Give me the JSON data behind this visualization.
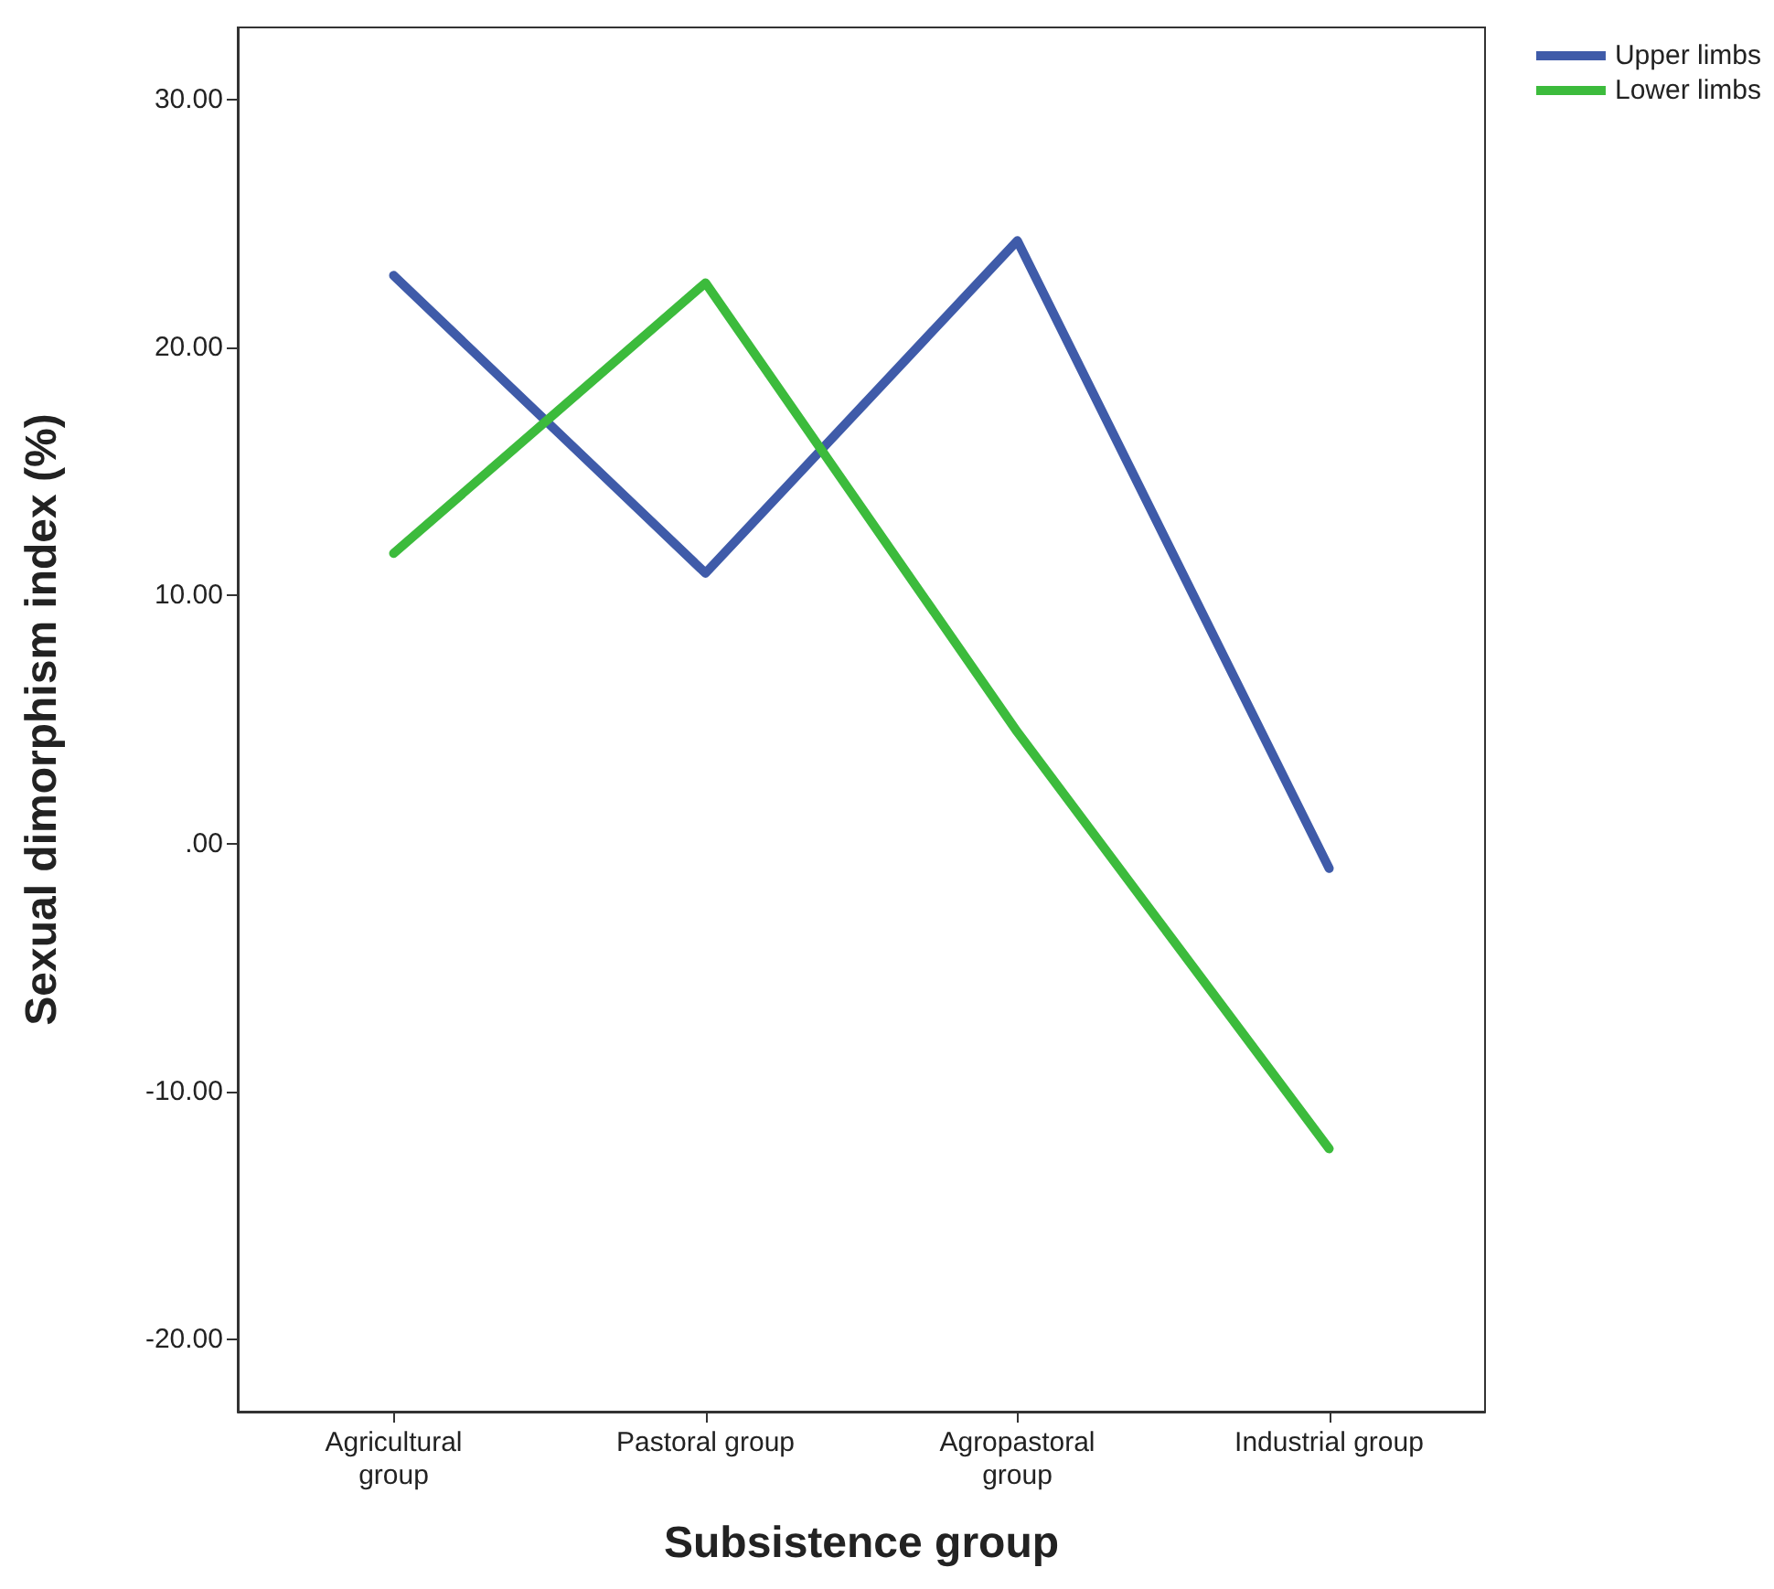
{
  "chart_data": {
    "type": "line",
    "xlabel": "Subsistence group",
    "ylabel": "Sexual dimorphism index (%)",
    "categories": [
      "Agricultural group",
      "Pastoral group",
      "Agropastoral group",
      "Industrial group"
    ],
    "series": [
      {
        "name": "Upper limbs",
        "color": "#3f5ba9",
        "values": [
          22.9,
          10.9,
          24.3,
          -1.0
        ]
      },
      {
        "name": "Lower limbs",
        "color": "#3cbb3c",
        "values": [
          11.7,
          22.6,
          4.5,
          -12.3
        ]
      }
    ],
    "ylim": [
      -22.9,
      32.9
    ],
    "yticks": [
      {
        "value": -20,
        "label": "-20.00"
      },
      {
        "value": -10,
        "label": "-10.00"
      },
      {
        "value": 0,
        "label": ".00"
      },
      {
        "value": 10,
        "label": "10.00"
      },
      {
        "value": 20,
        "label": "20.00"
      },
      {
        "value": 30,
        "label": "30.00"
      }
    ],
    "grid": false,
    "legend": "top right",
    "marker": "none",
    "line_style": "solid"
  }
}
